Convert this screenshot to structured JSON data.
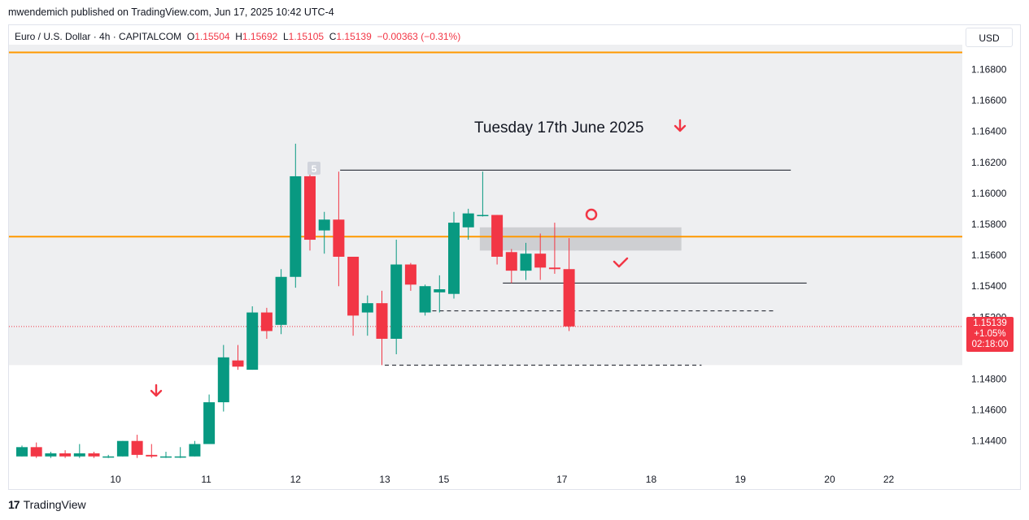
{
  "caption": "mwendemich published on TradingView.com, Jun 17, 2025 10:42 UTC-4",
  "legend": {
    "symbol": "Euro / U.S. Dollar · 4h · CAPITALCOM",
    "o_label": "O",
    "o": "1.15504",
    "h_label": "H",
    "h": "1.15692",
    "l_label": "L",
    "l": "1.15105",
    "c_label": "C",
    "c": "1.15139",
    "change": "−0.00363 (−0.31%)"
  },
  "currency": "USD",
  "last_price": {
    "price": "1.15139",
    "change": "+1.05%",
    "countdown": "02:18:00"
  },
  "annotation_title": "Tuesday 17th June 2025",
  "bar_marker": "5",
  "footer": {
    "brand": "TradingView"
  },
  "colors": {
    "up": "#089981",
    "down": "#f23645",
    "level": "#ff9800",
    "zone": "#c8c9cc",
    "bg_band": "#eeeff1"
  },
  "chart_data": {
    "type": "candlestick",
    "title": "Euro / U.S. Dollar · 4h · CAPITALCOM",
    "ylim": [
      1.1422,
      1.1696
    ],
    "yticks": [
      "1.16800",
      "1.16600",
      "1.16400",
      "1.16200",
      "1.16000",
      "1.15800",
      "1.15600",
      "1.15400",
      "1.15200",
      "1.14800",
      "1.14600",
      "1.14400"
    ],
    "xticks": [
      {
        "label": "10",
        "i": 6.5
      },
      {
        "label": "11",
        "i": 12.8
      },
      {
        "label": "12",
        "i": 19
      },
      {
        "label": "13",
        "i": 25.2
      },
      {
        "label": "15",
        "i": 29.3
      },
      {
        "label": "17",
        "i": 37.5
      },
      {
        "label": "18",
        "i": 43.7
      },
      {
        "label": "19",
        "i": 49.9
      },
      {
        "label": "20",
        "i": 56.1
      },
      {
        "label": "22",
        "i": 60.2
      }
    ],
    "candles": [
      {
        "o": 1.143,
        "h": 1.1437,
        "l": 1.143,
        "c": 1.1436
      },
      {
        "o": 1.1436,
        "h": 1.1439,
        "l": 1.1429,
        "c": 1.143
      },
      {
        "o": 1.143,
        "h": 1.1433,
        "l": 1.1429,
        "c": 1.1432
      },
      {
        "o": 1.1432,
        "h": 1.1434,
        "l": 1.1429,
        "c": 1.143
      },
      {
        "o": 1.143,
        "h": 1.1438,
        "l": 1.1429,
        "c": 1.1432
      },
      {
        "o": 1.1432,
        "h": 1.1433,
        "l": 1.1429,
        "c": 1.143
      },
      {
        "o": 1.143,
        "h": 1.1431,
        "l": 1.1429,
        "c": 1.143
      },
      {
        "o": 1.143,
        "h": 1.144,
        "l": 1.143,
        "c": 1.144
      },
      {
        "o": 1.144,
        "h": 1.1444,
        "l": 1.1429,
        "c": 1.1431
      },
      {
        "o": 1.1431,
        "h": 1.1438,
        "l": 1.1429,
        "c": 1.143
      },
      {
        "o": 1.143,
        "h": 1.1433,
        "l": 1.1429,
        "c": 1.143
      },
      {
        "o": 1.143,
        "h": 1.1436,
        "l": 1.1429,
        "c": 1.143
      },
      {
        "o": 1.143,
        "h": 1.144,
        "l": 1.143,
        "c": 1.1438
      },
      {
        "o": 1.1438,
        "h": 1.147,
        "l": 1.1438,
        "c": 1.1465
      },
      {
        "o": 1.1465,
        "h": 1.1502,
        "l": 1.1459,
        "c": 1.1494
      },
      {
        "o": 1.1492,
        "h": 1.1502,
        "l": 1.1486,
        "c": 1.1488
      },
      {
        "o": 1.1486,
        "h": 1.1527,
        "l": 1.1486,
        "c": 1.1523
      },
      {
        "o": 1.1523,
        "h": 1.1526,
        "l": 1.1506,
        "c": 1.1511
      },
      {
        "o": 1.1515,
        "h": 1.1551,
        "l": 1.1509,
        "c": 1.1546
      },
      {
        "o": 1.1546,
        "h": 1.1632,
        "l": 1.1539,
        "c": 1.1611
      },
      {
        "o": 1.1611,
        "h": 1.1615,
        "l": 1.1563,
        "c": 1.157
      },
      {
        "o": 1.1576,
        "h": 1.1588,
        "l": 1.1561,
        "c": 1.1583
      },
      {
        "o": 1.1583,
        "h": 1.1614,
        "l": 1.154,
        "c": 1.1559
      },
      {
        "o": 1.1559,
        "h": 1.1559,
        "l": 1.1508,
        "c": 1.1521
      },
      {
        "o": 1.1523,
        "h": 1.1534,
        "l": 1.1508,
        "c": 1.1529
      },
      {
        "o": 1.1529,
        "h": 1.1537,
        "l": 1.1489,
        "c": 1.1506
      },
      {
        "o": 1.1506,
        "h": 1.157,
        "l": 1.1496,
        "c": 1.1554
      },
      {
        "o": 1.1554,
        "h": 1.1555,
        "l": 1.1537,
        "c": 1.1541
      },
      {
        "o": 1.1523,
        "h": 1.1541,
        "l": 1.1521,
        "c": 1.154
      },
      {
        "o": 1.1536,
        "h": 1.1547,
        "l": 1.1523,
        "c": 1.1538
      },
      {
        "o": 1.1535,
        "h": 1.1588,
        "l": 1.1532,
        "c": 1.1581
      },
      {
        "o": 1.1578,
        "h": 1.159,
        "l": 1.157,
        "c": 1.1587
      },
      {
        "o": 1.1586,
        "h": 1.1614,
        "l": 1.1585,
        "c": 1.1586
      },
      {
        "o": 1.1586,
        "h": 1.1586,
        "l": 1.1554,
        "c": 1.1559
      },
      {
        "o": 1.1562,
        "h": 1.1564,
        "l": 1.1542,
        "c": 1.155
      },
      {
        "o": 1.155,
        "h": 1.1568,
        "l": 1.1544,
        "c": 1.1561
      },
      {
        "o": 1.1561,
        "h": 1.1574,
        "l": 1.1544,
        "c": 1.1552
      },
      {
        "o": 1.1552,
        "h": 1.1581,
        "l": 1.1548,
        "c": 1.1551
      },
      {
        "o": 1.1551,
        "h": 1.1571,
        "l": 1.1511,
        "c": 1.1514
      }
    ],
    "annotations": {
      "horizontal_levels_orange": [
        1.1691,
        1.1572
      ],
      "current_price_dotted": 1.15139,
      "resistance_line": {
        "price": 1.1615,
        "from_i": 22.1,
        "to_i": 53.4
      },
      "support_line": {
        "price": 1.1542,
        "from_i": 33.4,
        "to_i": 54.5
      },
      "dashed_lines": [
        {
          "price": 1.1524,
          "from_i": 28.5,
          "to_i": 52.2
        },
        {
          "price": 1.1489,
          "from_i": 25.2,
          "to_i": 47.2
        }
      ],
      "zone": {
        "from_price": 1.1578,
        "to_price": 1.1563,
        "from_i": 31.8,
        "to_i": 45.8
      },
      "shaded_band": {
        "top": 1.1696,
        "bottom": 1.1489
      }
    }
  }
}
